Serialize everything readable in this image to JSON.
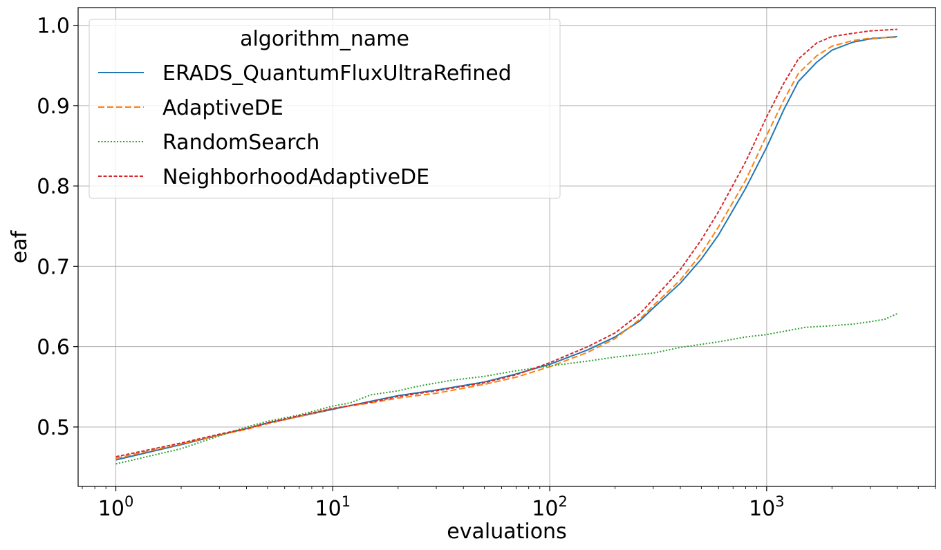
{
  "chart_data": {
    "type": "line",
    "xlabel": "evaluations",
    "ylabel": "eaf",
    "xscale": "log",
    "xlim": [
      0.67,
      6000
    ],
    "ylim": [
      0.426,
      1.022
    ],
    "grid": true,
    "legend": {
      "title": "algorithm_name",
      "placement": "top-left"
    },
    "x_ticks": [
      {
        "value": 1,
        "base": "10",
        "exp": "0"
      },
      {
        "value": 10,
        "base": "10",
        "exp": "1"
      },
      {
        "value": 100,
        "base": "10",
        "exp": "2"
      },
      {
        "value": 1000,
        "base": "10",
        "exp": "3"
      }
    ],
    "y_ticks": [
      {
        "value": 0.5,
        "label": "0.5"
      },
      {
        "value": 0.6,
        "label": "0.6"
      },
      {
        "value": 0.7,
        "label": "0.7"
      },
      {
        "value": 0.8,
        "label": "0.8"
      },
      {
        "value": 0.9,
        "label": "0.9"
      },
      {
        "value": 1.0,
        "label": "1.0"
      }
    ],
    "series": [
      {
        "name": "ERADS_QuantumFluxUltraRefined",
        "color": "#1f77b4",
        "dash": "solid",
        "x": [
          1,
          2,
          3,
          4,
          5,
          7,
          10,
          15,
          20,
          30,
          50,
          70,
          100,
          150,
          200,
          260,
          300,
          400,
          500,
          600,
          800,
          1000,
          1200,
          1400,
          1700,
          2000,
          2500,
          3000,
          4000
        ],
        "y": [
          0.459,
          0.478,
          0.49,
          0.498,
          0.505,
          0.513,
          0.522,
          0.532,
          0.539,
          0.546,
          0.556,
          0.566,
          0.578,
          0.596,
          0.612,
          0.632,
          0.648,
          0.679,
          0.709,
          0.739,
          0.797,
          0.848,
          0.895,
          0.93,
          0.954,
          0.969,
          0.979,
          0.983,
          0.986
        ]
      },
      {
        "name": "AdaptiveDE",
        "color": "#ff7f0e",
        "dash": "dashed",
        "x": [
          1,
          2,
          3,
          4,
          5,
          7,
          10,
          15,
          20,
          30,
          50,
          70,
          100,
          150,
          200,
          260,
          300,
          400,
          500,
          600,
          800,
          1000,
          1200,
          1400,
          1700,
          2000,
          2500,
          3000,
          4000
        ],
        "y": [
          0.461,
          0.479,
          0.49,
          0.497,
          0.504,
          0.513,
          0.523,
          0.53,
          0.536,
          0.542,
          0.553,
          0.562,
          0.575,
          0.593,
          0.61,
          0.634,
          0.651,
          0.683,
          0.716,
          0.749,
          0.807,
          0.863,
          0.907,
          0.94,
          0.962,
          0.974,
          0.981,
          0.984,
          0.985
        ]
      },
      {
        "name": "RandomSearch",
        "color": "#2ca02c",
        "dash": "dotted",
        "x": [
          1,
          2,
          3,
          4,
          5,
          7,
          10,
          12,
          15,
          20,
          25,
          35,
          50,
          70,
          100,
          150,
          200,
          300,
          400,
          600,
          800,
          1000,
          1200,
          1500,
          2000,
          2500,
          3000,
          3500,
          4000
        ],
        "y": [
          0.454,
          0.473,
          0.489,
          0.5,
          0.507,
          0.515,
          0.526,
          0.53,
          0.54,
          0.545,
          0.551,
          0.558,
          0.563,
          0.57,
          0.576,
          0.582,
          0.587,
          0.592,
          0.599,
          0.606,
          0.612,
          0.615,
          0.619,
          0.624,
          0.626,
          0.628,
          0.631,
          0.634,
          0.641
        ]
      },
      {
        "name": "NeighborhoodAdaptiveDE",
        "color": "#d62728",
        "dash": "densely-dashed",
        "x": [
          1,
          2,
          3,
          4,
          5,
          7,
          10,
          15,
          20,
          30,
          50,
          70,
          100,
          150,
          200,
          260,
          300,
          400,
          500,
          600,
          800,
          1000,
          1200,
          1400,
          1700,
          2000,
          2500,
          3000,
          4000
        ],
        "y": [
          0.463,
          0.48,
          0.491,
          0.498,
          0.505,
          0.514,
          0.523,
          0.531,
          0.538,
          0.545,
          0.555,
          0.565,
          0.58,
          0.6,
          0.617,
          0.641,
          0.659,
          0.696,
          0.733,
          0.768,
          0.83,
          0.886,
          0.928,
          0.958,
          0.978,
          0.986,
          0.99,
          0.993,
          0.995
        ]
      }
    ]
  }
}
